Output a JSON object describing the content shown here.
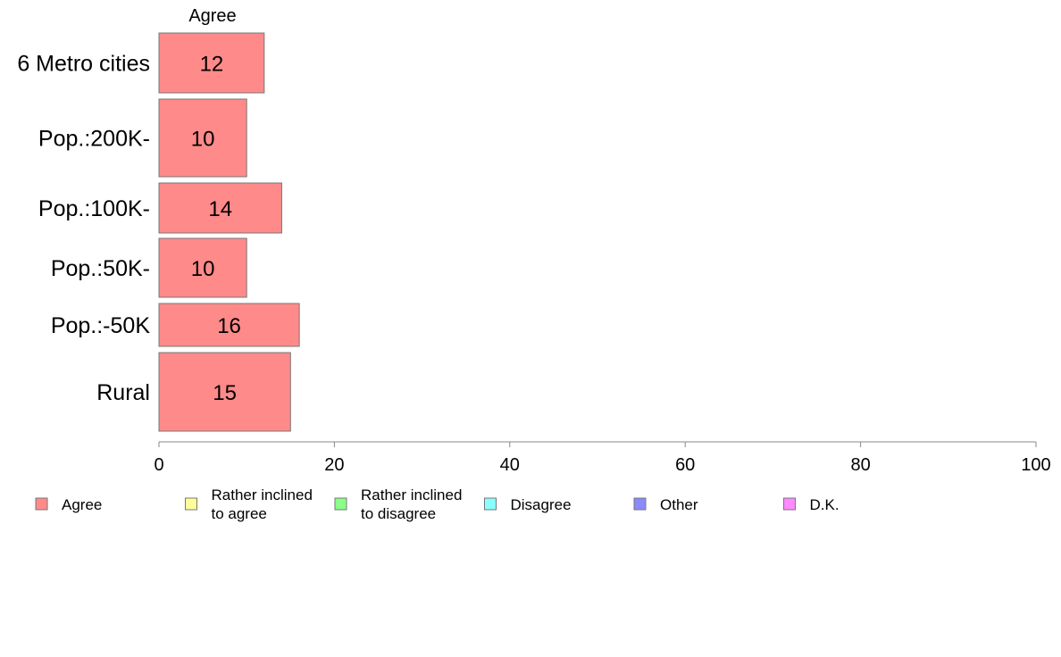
{
  "chart_data": {
    "type": "bar",
    "orientation": "horizontal",
    "stacked": true,
    "categories": [
      "6 Metro cities",
      "Pop.:200K-",
      "Pop.:100K-",
      "Pop.:50K-",
      "Pop.:-50K",
      "Rural"
    ],
    "series": [
      {
        "name": "Agree",
        "color": "#ff8a8a",
        "values": [
          12,
          10,
          14,
          10,
          16,
          15
        ],
        "labels": [
          "12",
          "10",
          "14",
          "10",
          "16",
          "15"
        ]
      },
      {
        "name": "Rather inclined\nto agree",
        "color": "#ffff99",
        "values": [
          null,
          null,
          null,
          null,
          null,
          null
        ]
      },
      {
        "name": "Rather inclined\nto disagree",
        "color": "#8aff8a",
        "values": [
          null,
          null,
          null,
          null,
          null,
          null
        ]
      },
      {
        "name": "Disagree",
        "color": "#8affff",
        "values": [
          null,
          null,
          null,
          null,
          null,
          null
        ]
      },
      {
        "name": "Other",
        "color": "#8a8aff",
        "values": [
          null,
          null,
          null,
          null,
          null,
          null
        ]
      },
      {
        "name": "D.K.",
        "color": "#ff8aff",
        "values": [
          null,
          null,
          null,
          null,
          null,
          null
        ]
      }
    ],
    "column_label": "Agree",
    "xlim": [
      0,
      100
    ],
    "xticks": [
      0,
      20,
      40,
      60,
      80,
      100
    ],
    "grid": false,
    "legend_position": "bottom"
  }
}
